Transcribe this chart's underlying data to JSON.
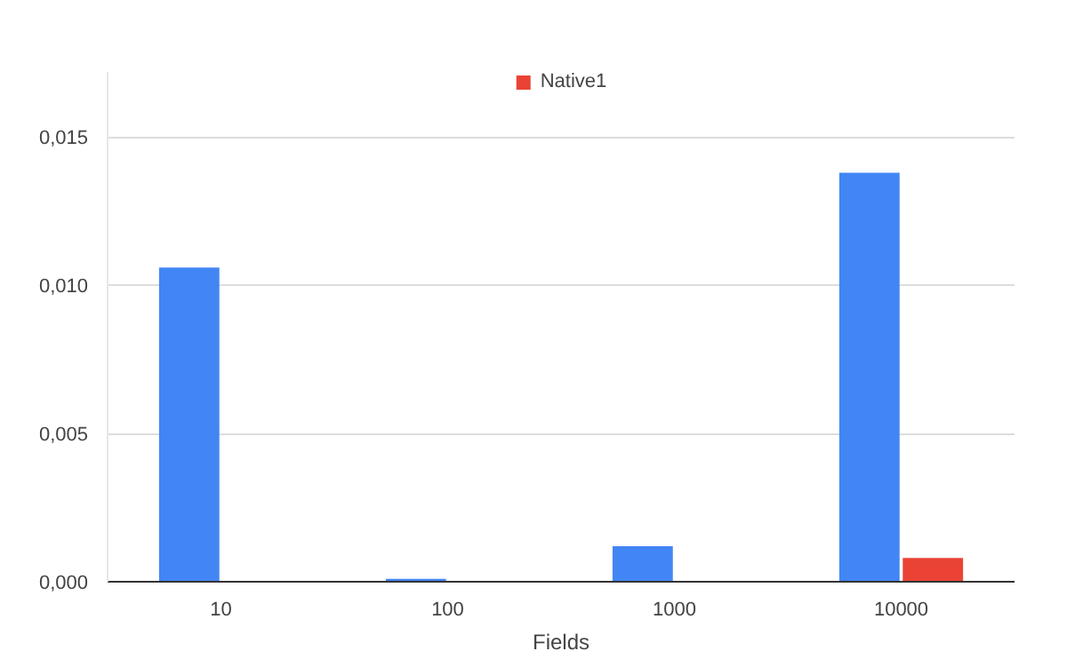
{
  "chart_data": {
    "type": "bar",
    "xlabel": "Fields",
    "categories": [
      "10",
      "100",
      "1000",
      "10000"
    ],
    "series": [
      {
        "color": "#4285f4",
        "values": [
          0.0106,
          0.0001,
          0.0012,
          0.0138
        ]
      },
      {
        "name": "Native1",
        "color": "#ea4335",
        "values": [
          0,
          0,
          0,
          0.0008
        ]
      }
    ],
    "ylim": [
      0,
      0.0172
    ],
    "yticks": [
      {
        "value": 0,
        "label": "0,000"
      },
      {
        "value": 0.005,
        "label": "0,005"
      },
      {
        "value": 0.01,
        "label": "0,010"
      },
      {
        "value": 0.015,
        "label": "0,015"
      }
    ],
    "grid": "y",
    "legend": "top"
  }
}
